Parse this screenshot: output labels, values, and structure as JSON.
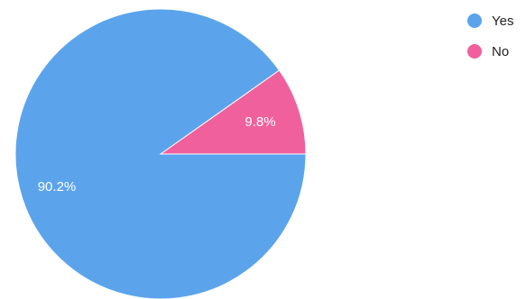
{
  "chart_data": {
    "type": "pie",
    "title": "",
    "slices": [
      {
        "label": "Yes",
        "value": 90.2,
        "display": "90.2%",
        "color": "#5ba4ec"
      },
      {
        "label": "No",
        "value": 9.8,
        "display": "9.8%",
        "color": "#f0609c"
      }
    ],
    "legend": {
      "placement": "top-right",
      "items": [
        "Yes",
        "No"
      ]
    }
  }
}
